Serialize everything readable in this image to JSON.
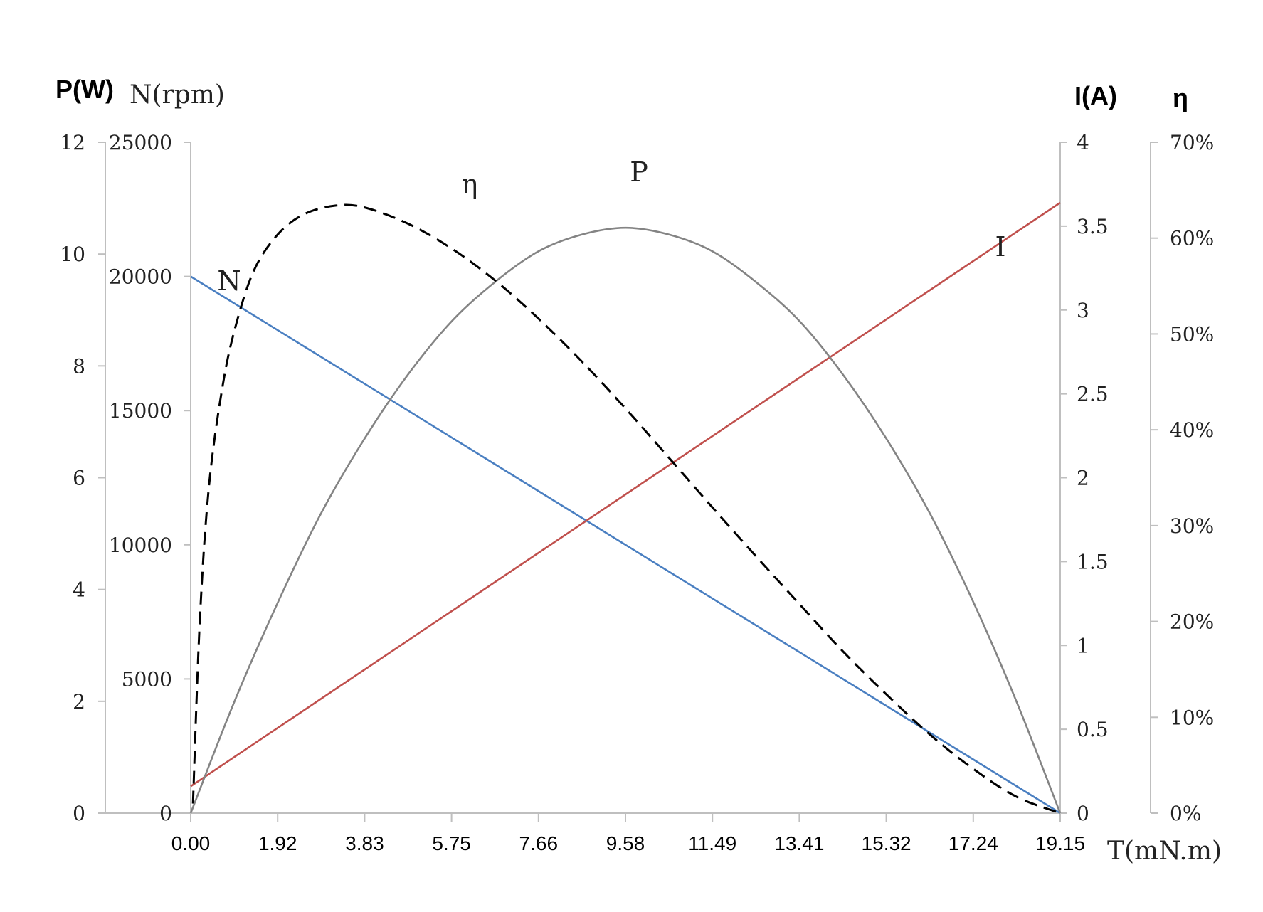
{
  "chart_data": {
    "type": "line",
    "title": "",
    "xlabel": "T(mN.m)",
    "x_ticks": [
      "0.00",
      "1.92",
      "3.83",
      "5.75",
      "7.66",
      "9.58",
      "11.49",
      "13.41",
      "15.32",
      "17.24",
      "19.15"
    ],
    "xlim": [
      0,
      19.15
    ],
    "axes": {
      "power": {
        "label": "P(W)",
        "ticks": [
          "0",
          "2",
          "4",
          "6",
          "8",
          "10",
          "12"
        ],
        "lim": [
          0,
          12
        ]
      },
      "speed": {
        "label": "N(rpm)",
        "ticks": [
          "0",
          "5000",
          "10000",
          "15000",
          "20000",
          "25000"
        ],
        "lim": [
          0,
          25000
        ]
      },
      "current": {
        "label": "I(A)",
        "ticks": [
          "0",
          "0.5",
          "1",
          "1.5",
          "2",
          "2.5",
          "3",
          "3.5",
          "4"
        ],
        "lim": [
          0,
          4
        ]
      },
      "efficiency": {
        "label": "η",
        "ticks": [
          "0%",
          "10%",
          "20%",
          "30%",
          "40%",
          "50%",
          "60%",
          "70%"
        ],
        "lim": [
          0,
          0.7
        ]
      }
    },
    "series": [
      {
        "name": "N",
        "axis": "speed",
        "color": "#4a7fc1",
        "dash": "solid",
        "x": [
          0,
          19.15
        ],
        "y": [
          20000,
          0
        ]
      },
      {
        "name": "I",
        "axis": "current",
        "color": "#c0504d",
        "dash": "solid",
        "x": [
          0,
          19.15
        ],
        "y": [
          0.16,
          3.64
        ]
      },
      {
        "name": "P",
        "axis": "power",
        "color": "#848484",
        "dash": "solid",
        "x": [
          0,
          0.96,
          1.92,
          2.87,
          3.83,
          4.79,
          5.75,
          6.7,
          7.66,
          8.62,
          9.58,
          10.53,
          11.49,
          12.45,
          13.41,
          14.36,
          15.32,
          16.28,
          17.24,
          18.19,
          19.15
        ],
        "y": [
          0,
          1.99,
          3.77,
          5.36,
          6.7,
          7.85,
          8.8,
          9.5,
          10.05,
          10.35,
          10.47,
          10.35,
          10.05,
          9.5,
          8.8,
          7.85,
          6.7,
          5.36,
          3.77,
          1.99,
          0
        ]
      },
      {
        "name": "η",
        "axis": "efficiency",
        "color": "#000000",
        "dash": "dashed",
        "x": [
          0.05,
          0.2,
          0.4,
          0.7,
          1.0,
          1.4,
          1.92,
          2.5,
          3.2,
          3.83,
          4.79,
          5.75,
          6.7,
          7.66,
          8.62,
          9.58,
          10.53,
          11.49,
          12.45,
          13.41,
          14.36,
          15.32,
          16.28,
          17.24,
          18.19,
          19.15
        ],
        "y": [
          0.01,
          0.2,
          0.34,
          0.445,
          0.51,
          0.567,
          0.604,
          0.625,
          0.634,
          0.632,
          0.615,
          0.589,
          0.556,
          0.516,
          0.471,
          0.422,
          0.371,
          0.319,
          0.268,
          0.218,
          0.169,
          0.124,
          0.082,
          0.046,
          0.017,
          0
        ]
      }
    ],
    "curve_labels": [
      {
        "text": "N",
        "series": "N"
      },
      {
        "text": "η",
        "series": "η"
      },
      {
        "text": "P",
        "series": "P"
      },
      {
        "text": "I",
        "series": "I"
      }
    ],
    "grid": false,
    "legend": "none"
  }
}
